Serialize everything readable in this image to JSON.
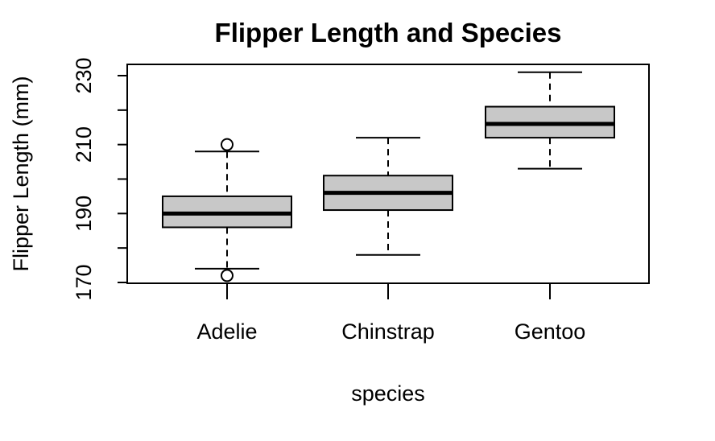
{
  "chart_data": {
    "type": "boxplot",
    "title": "Flipper Length and Species",
    "xlabel": "species",
    "ylabel": "Flipper Length (mm)",
    "ylim": [
      170,
      233
    ],
    "yticks": [
      170,
      180,
      190,
      200,
      210,
      220,
      230
    ],
    "ytick_labels": [
      "170",
      "190",
      "210",
      "230"
    ],
    "categories": [
      "Adelie",
      "Chinstrap",
      "Gentoo"
    ],
    "boxes": [
      {
        "name": "Adelie",
        "whisker_low": 174,
        "q1": 186,
        "median": 190,
        "q3": 195,
        "whisker_high": 208,
        "outliers": [
          172,
          210
        ]
      },
      {
        "name": "Chinstrap",
        "whisker_low": 178,
        "q1": 191,
        "median": 196,
        "q3": 201,
        "whisker_high": 212,
        "outliers": []
      },
      {
        "name": "Gentoo",
        "whisker_low": 203,
        "q1": 212,
        "median": 216,
        "q3": 221,
        "whisker_high": 231,
        "outliers": []
      }
    ],
    "box_color": "#c8c8c8"
  }
}
